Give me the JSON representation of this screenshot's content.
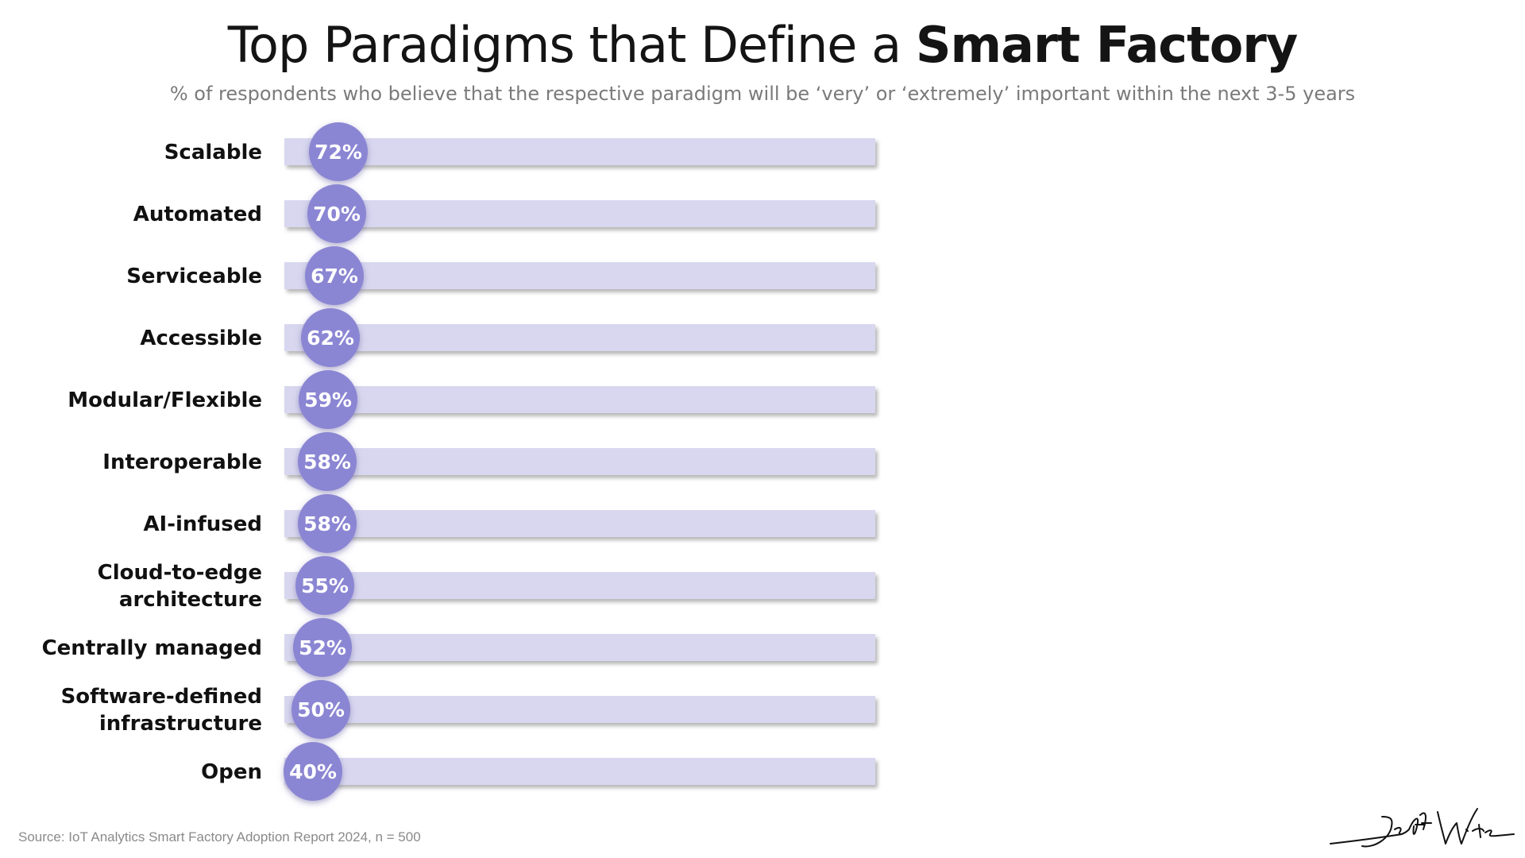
{
  "title": {
    "regular": "Top Paradigms that Define a ",
    "bold": "Smart Factory"
  },
  "subtitle": "% of respondents who believe that the respective paradigm will be ‘very’ or ‘extremely’ important within the next 3-5 years",
  "source": "Source: IoT Analytics Smart Factory Adoption Report 2024, n = 500",
  "signature": "Jeff Winter",
  "colors": {
    "track": "#d8d7ef",
    "bubble": "#8b86d3",
    "bubble_text": "#ffffff",
    "label": "#111111"
  },
  "chart_data": {
    "type": "bar",
    "title": "Top Paradigms that Define a Smart Factory",
    "value_unit": "%",
    "categories": [
      [
        "Scalable"
      ],
      [
        "Automated"
      ],
      [
        "Serviceable"
      ],
      [
        "Accessible"
      ],
      [
        "Modular/Flexible"
      ],
      [
        "Interoperable"
      ],
      [
        "AI-infused"
      ],
      [
        "Cloud-to-edge",
        "architecture"
      ],
      [
        "Centrally managed"
      ],
      [
        "Software-defined",
        "infrastructure"
      ],
      [
        "Open"
      ]
    ],
    "values": [
      72,
      70,
      67,
      62,
      59,
      58,
      58,
      55,
      52,
      50,
      40
    ],
    "ylim": [
      0,
      100
    ]
  }
}
